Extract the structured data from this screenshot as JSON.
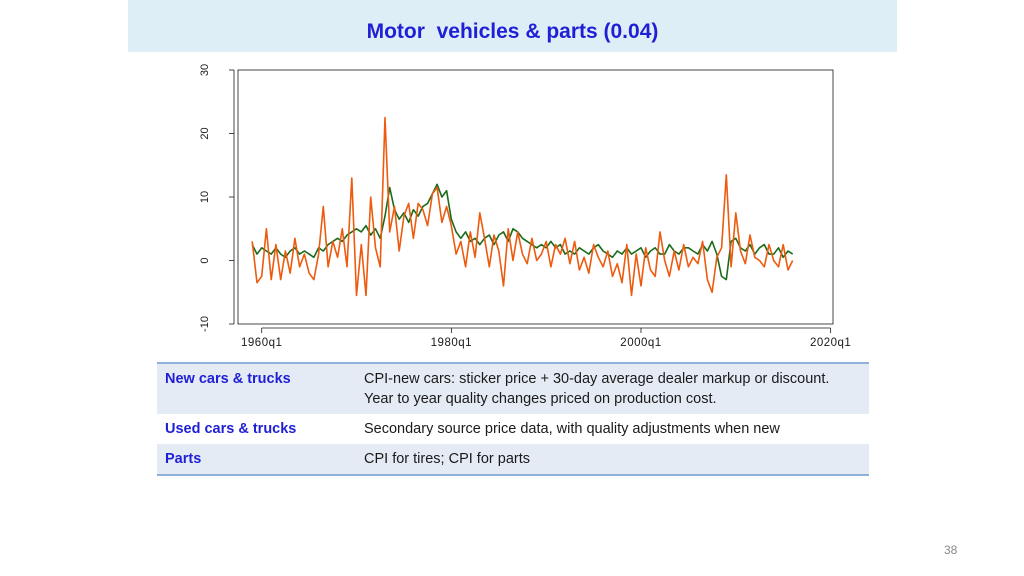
{
  "slide": {
    "title": "Motor  vehicles & parts (0.04)",
    "page_number": "38"
  },
  "table": {
    "rows": [
      {
        "category": "New cars & trucks",
        "lines": [
          "CPI-new cars: sticker price + 30-day average dealer markup or discount.",
          "Year to year quality changes priced on production cost."
        ]
      },
      {
        "category": "Used cars & trucks",
        "lines": [
          "Secondary source price data, with quality adjustments when new"
        ]
      },
      {
        "category": "Parts",
        "lines": [
          "CPI for tires; CPI for parts"
        ]
      }
    ]
  },
  "chart_data": {
    "type": "line",
    "title": "",
    "xlabel": "",
    "ylabel": "",
    "ylim": [
      -10,
      30
    ],
    "yticks": [
      -10,
      0,
      10,
      20,
      30
    ],
    "xlim": [
      1957.5,
      2020.25
    ],
    "xticks": [
      {
        "value": 1960,
        "label": "1960q1"
      },
      {
        "value": 1980,
        "label": "1980q1"
      },
      {
        "value": 2000,
        "label": "2000q1"
      },
      {
        "value": 2020,
        "label": "2020q1"
      }
    ],
    "grid": false,
    "legend": "none",
    "series": [
      {
        "color": "#1a6b1a",
        "x": [
          1959,
          1959.5,
          1960,
          1960.5,
          1961,
          1961.5,
          1962,
          1962.5,
          1963,
          1963.5,
          1964,
          1964.5,
          1965,
          1965.5,
          1966,
          1966.5,
          1967,
          1967.5,
          1968,
          1968.5,
          1969,
          1969.5,
          1970,
          1970.5,
          1971,
          1971.5,
          1972,
          1972.5,
          1973,
          1973.5,
          1974,
          1974.5,
          1975,
          1975.5,
          1976,
          1976.5,
          1977,
          1977.5,
          1978,
          1978.5,
          1979,
          1979.5,
          1980,
          1980.5,
          1981,
          1981.5,
          1982,
          1982.5,
          1983,
          1983.5,
          1984,
          1984.5,
          1985,
          1985.5,
          1986,
          1986.5,
          1987,
          1987.5,
          1988,
          1988.5,
          1989,
          1989.5,
          1990,
          1990.5,
          1991,
          1991.5,
          1992,
          1992.5,
          1993,
          1993.5,
          1994,
          1994.5,
          1995,
          1995.5,
          1996,
          1996.5,
          1997,
          1997.5,
          1998,
          1998.5,
          1999,
          1999.5,
          2000,
          2000.5,
          2001,
          2001.5,
          2002,
          2002.5,
          2003,
          2003.5,
          2004,
          2004.5,
          2005,
          2005.5,
          2006,
          2006.5,
          2007,
          2007.5,
          2008,
          2008.5,
          2009,
          2009.5,
          2010,
          2010.5,
          2011,
          2011.5,
          2012,
          2012.5,
          2013,
          2013.5,
          2014,
          2014.5,
          2015,
          2015.5,
          2016
        ],
        "y": [
          2.5,
          1.0,
          2.0,
          1.5,
          1.0,
          2.0,
          1.0,
          0.5,
          1.5,
          2.0,
          1.0,
          1.5,
          1.0,
          0.5,
          2.0,
          1.5,
          2.5,
          3.0,
          3.5,
          3.0,
          4.0,
          4.5,
          5.0,
          4.5,
          5.5,
          4.0,
          5.0,
          3.5,
          7.0,
          11.5,
          8.0,
          6.5,
          7.5,
          6.0,
          8.0,
          7.0,
          8.5,
          9.0,
          10.5,
          12.0,
          10.0,
          11.0,
          6.5,
          4.5,
          3.5,
          4.5,
          3.0,
          3.5,
          2.5,
          3.5,
          4.0,
          2.5,
          4.0,
          4.5,
          3.0,
          5.0,
          4.5,
          3.5,
          3.0,
          2.5,
          2.0,
          2.5,
          2.0,
          3.0,
          2.0,
          2.5,
          1.0,
          1.5,
          1.0,
          2.0,
          1.5,
          1.0,
          2.0,
          2.5,
          1.5,
          1.0,
          0.5,
          1.5,
          1.0,
          2.0,
          1.0,
          1.5,
          2.0,
          0.5,
          1.5,
          2.0,
          1.0,
          1.0,
          2.5,
          1.5,
          1.0,
          2.0,
          2.0,
          1.5,
          1.0,
          2.5,
          1.5,
          3.0,
          1.0,
          -2.5,
          -3.0,
          3.0,
          3.5,
          2.0,
          1.5,
          2.5,
          1.0,
          2.0,
          2.5,
          1.0,
          1.0,
          2.0,
          0.5,
          1.5,
          1.0
        ]
      },
      {
        "color": "#ee5a0e",
        "x": [
          1959,
          1959.5,
          1960,
          1960.5,
          1961,
          1961.5,
          1962,
          1962.5,
          1963,
          1963.5,
          1964,
          1964.5,
          1965,
          1965.5,
          1966,
          1966.5,
          1967,
          1967.5,
          1968,
          1968.5,
          1969,
          1969.5,
          1970,
          1970.5,
          1971,
          1971.5,
          1972,
          1972.5,
          1973,
          1973.5,
          1974,
          1974.5,
          1975,
          1975.5,
          1976,
          1976.5,
          1977,
          1977.5,
          1978,
          1978.5,
          1979,
          1979.5,
          1980,
          1980.5,
          1981,
          1981.5,
          1982,
          1982.5,
          1983,
          1983.5,
          1984,
          1984.5,
          1985,
          1985.5,
          1986,
          1986.5,
          1987,
          1987.5,
          1988,
          1988.5,
          1989,
          1989.5,
          1990,
          1990.5,
          1991,
          1991.5,
          1992,
          1992.5,
          1993,
          1993.5,
          1994,
          1994.5,
          1995,
          1995.5,
          1996,
          1996.5,
          1997,
          1997.5,
          1998,
          1998.5,
          1999,
          1999.5,
          2000,
          2000.5,
          2001,
          2001.5,
          2002,
          2002.5,
          2003,
          2003.5,
          2004,
          2004.5,
          2005,
          2005.5,
          2006,
          2006.5,
          2007,
          2007.5,
          2008,
          2008.5,
          2009,
          2009.5,
          2010,
          2010.5,
          2011,
          2011.5,
          2012,
          2012.5,
          2013,
          2013.5,
          2014,
          2014.5,
          2015,
          2015.5,
          2016
        ],
        "y": [
          3.0,
          -3.5,
          -2.5,
          5.0,
          -3.0,
          2.5,
          -3.0,
          1.5,
          -2.0,
          3.5,
          -1.0,
          1.0,
          -2.0,
          -3.0,
          1.0,
          8.5,
          -1.0,
          3.0,
          0.5,
          5.0,
          -1.0,
          13.0,
          -5.5,
          2.5,
          -5.5,
          10.0,
          2.0,
          -1.0,
          22.5,
          4.5,
          8.5,
          1.5,
          7.0,
          9.0,
          3.5,
          9.0,
          8.0,
          5.5,
          10.5,
          11.5,
          6.0,
          8.5,
          5.5,
          1.0,
          3.0,
          -1.0,
          4.5,
          0.5,
          7.5,
          3.5,
          -1.0,
          4.0,
          1.5,
          -4.0,
          5.0,
          0.0,
          4.5,
          1.0,
          -0.5,
          3.5,
          0.0,
          1.0,
          3.0,
          -1.0,
          2.5,
          1.0,
          3.5,
          -0.5,
          3.0,
          -1.5,
          0.5,
          -2.0,
          2.5,
          0.5,
          -1.0,
          1.5,
          -2.5,
          -0.5,
          -3.5,
          2.5,
          -5.5,
          1.0,
          -4.0,
          2.0,
          -1.5,
          -2.5,
          4.5,
          0.0,
          -2.5,
          1.5,
          -1.5,
          2.5,
          -1.0,
          0.5,
          -0.5,
          3.0,
          -3.0,
          -5.0,
          0.5,
          2.0,
          13.5,
          -1.0,
          7.5,
          1.5,
          -0.5,
          4.0,
          0.5,
          0.0,
          -1.0,
          2.5,
          0.0,
          -1.0,
          2.5,
          -1.5,
          0.0
        ]
      }
    ]
  }
}
